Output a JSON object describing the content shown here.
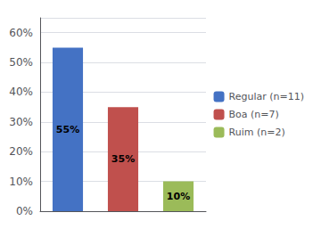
{
  "chart_data": {
    "type": "bar",
    "categories": [
      "Regular (n=11)",
      "Boa (n=7)",
      "Ruim (n=2)"
    ],
    "values": [
      55,
      35,
      10
    ],
    "value_labels": [
      "55%",
      "35%",
      "10%"
    ],
    "data_labels": true,
    "colors": [
      "#4472C4",
      "#C0504D",
      "#9BBB59"
    ],
    "ylim": [
      0,
      65
    ],
    "yticks": [
      {
        "value": 0,
        "label": "0%"
      },
      {
        "value": 10,
        "label": "10%"
      },
      {
        "value": 20,
        "label": "20%"
      },
      {
        "value": 30,
        "label": "30%"
      },
      {
        "value": 40,
        "label": "40%"
      },
      {
        "value": 50,
        "label": "50%"
      },
      {
        "value": 60,
        "label": "60%"
      }
    ],
    "grid": true,
    "legend": "right",
    "tick_labels": "y"
  }
}
